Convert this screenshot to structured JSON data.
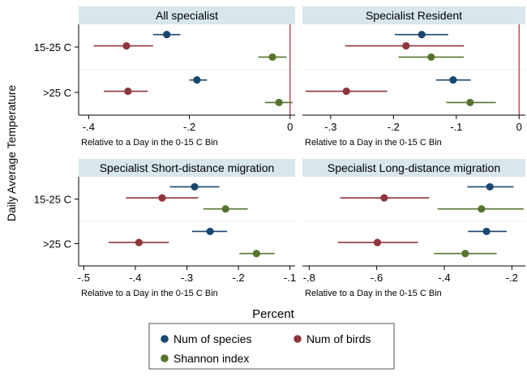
{
  "figure": {
    "y_title": "Daily Average Temperature",
    "x_title": "Percent",
    "legend": [
      {
        "name": "Num of species",
        "color": "#1a476f"
      },
      {
        "name": "Num of birds",
        "color": "#90353b"
      },
      {
        "name": "Shannon index",
        "color": "#55752f"
      }
    ]
  },
  "chart_data": [
    {
      "type": "scatter",
      "title": "All specialist",
      "xlabel": "Relative to a Day in the 0-15 C Bin",
      "xlim": [
        -0.42,
        0.01
      ],
      "xticks": [
        -0.4,
        -0.2,
        0
      ],
      "xtick_labels": [
        "-.4",
        "-.2",
        "0"
      ],
      "zero_line": true,
      "categories": [
        "15-25 C",
        ">25 C"
      ],
      "series": [
        {
          "name": "Num of species",
          "estimates": [
            -0.245,
            -0.185
          ],
          "ci_low": [
            -0.272,
            -0.2
          ],
          "ci_high": [
            -0.218,
            -0.165
          ]
        },
        {
          "name": "Num of birds",
          "estimates": [
            -0.325,
            -0.322
          ],
          "ci_low": [
            -0.39,
            -0.37
          ],
          "ci_high": [
            -0.272,
            -0.283
          ]
        },
        {
          "name": "Shannon index",
          "estimates": [
            -0.035,
            -0.022
          ],
          "ci_low": [
            -0.063,
            -0.05
          ],
          "ci_high": [
            -0.007,
            0.005
          ]
        }
      ]
    },
    {
      "type": "scatter",
      "title": "Specialist Resident",
      "xlabel": "Relative to a Day in the 0-15 C Bin",
      "xlim": [
        -0.345,
        0.01
      ],
      "xticks": [
        -0.3,
        -0.2,
        -0.1,
        0
      ],
      "xtick_labels": [
        "-.3",
        "-.2",
        "-.1",
        "0"
      ],
      "zero_line": true,
      "categories": [
        "15-25 C",
        ">25 C"
      ],
      "series": [
        {
          "name": "Num of species",
          "estimates": [
            -0.155,
            -0.105
          ],
          "ci_low": [
            -0.198,
            -0.132
          ],
          "ci_high": [
            -0.113,
            -0.077
          ]
        },
        {
          "name": "Num of birds",
          "estimates": [
            -0.18,
            -0.275
          ],
          "ci_low": [
            -0.277,
            -0.34
          ],
          "ci_high": [
            -0.088,
            -0.21
          ]
        },
        {
          "name": "Shannon index",
          "estimates": [
            -0.14,
            -0.078
          ],
          "ci_low": [
            -0.192,
            -0.116
          ],
          "ci_high": [
            -0.088,
            -0.037
          ]
        }
      ]
    },
    {
      "type": "scatter",
      "title": "Specialist Short-distance migration",
      "xlabel": "Relative to a Day in the 0-15 C Bin",
      "xlim": [
        -0.51,
        -0.09
      ],
      "xticks": [
        -0.5,
        -0.4,
        -0.3,
        -0.2,
        -0.1
      ],
      "xtick_labels": [
        "-.5",
        "-.4",
        "-.3",
        "-.2",
        "-.1"
      ],
      "zero_line": false,
      "categories": [
        "15-25 C",
        ">25 C"
      ],
      "series": [
        {
          "name": "Num of species",
          "estimates": [
            -0.285,
            -0.255
          ],
          "ci_low": [
            -0.333,
            -0.29
          ],
          "ci_high": [
            -0.237,
            -0.222
          ]
        },
        {
          "name": "Num of birds",
          "estimates": [
            -0.348,
            -0.393
          ],
          "ci_low": [
            -0.418,
            -0.452
          ],
          "ci_high": [
            -0.278,
            -0.335
          ]
        },
        {
          "name": "Shannon index",
          "estimates": [
            -0.225,
            -0.165
          ],
          "ci_low": [
            -0.268,
            -0.198
          ],
          "ci_high": [
            -0.182,
            -0.13
          ]
        }
      ]
    },
    {
      "type": "scatter",
      "title": "Specialist Long-distance migration",
      "xlabel": "Relative to a Day in the 0-15 C Bin",
      "xlim": [
        -0.82,
        -0.16
      ],
      "xticks": [
        -0.8,
        -0.6,
        -0.4,
        -0.2
      ],
      "xtick_labels": [
        "-.8",
        "-.6",
        "-.4",
        "-.2"
      ],
      "zero_line": false,
      "categories": [
        "15-25 C",
        ">25 C"
      ],
      "series": [
        {
          "name": "Num of species",
          "estimates": [
            -0.265,
            -0.275
          ],
          "ci_low": [
            -0.332,
            -0.33
          ],
          "ci_high": [
            -0.195,
            -0.215
          ]
        },
        {
          "name": "Num of birds",
          "estimates": [
            -0.578,
            -0.598
          ],
          "ci_low": [
            -0.708,
            -0.715
          ],
          "ci_high": [
            -0.445,
            -0.478
          ]
        },
        {
          "name": "Shannon index",
          "estimates": [
            -0.29,
            -0.338
          ],
          "ci_low": [
            -0.42,
            -0.43
          ],
          "ci_high": [
            -0.165,
            -0.245
          ]
        }
      ]
    }
  ]
}
